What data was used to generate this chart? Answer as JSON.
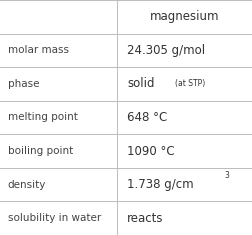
{
  "title": "magnesium",
  "rows": [
    {
      "label": "molar mass",
      "value": "24.305 g/mol",
      "superscript": null,
      "small_suffix": null
    },
    {
      "label": "phase",
      "value": "solid",
      "superscript": null,
      "small_suffix": "(at STP)"
    },
    {
      "label": "melting point",
      "value": "648 °C",
      "superscript": null,
      "small_suffix": null
    },
    {
      "label": "boiling point",
      "value": "1090 °C",
      "superscript": null,
      "small_suffix": null
    },
    {
      "label": "density",
      "value": "1.738 g/cm",
      "superscript": "3",
      "small_suffix": null
    },
    {
      "label": "solubility in water",
      "value": "reacts",
      "superscript": null,
      "small_suffix": null
    }
  ],
  "bg_color": "#ffffff",
  "line_color": "#bbbbbb",
  "text_color": "#333333",
  "label_color": "#444444",
  "title_color": "#333333",
  "col_split": 0.465,
  "figwidth": 2.52,
  "figheight": 2.35,
  "dpi": 100
}
